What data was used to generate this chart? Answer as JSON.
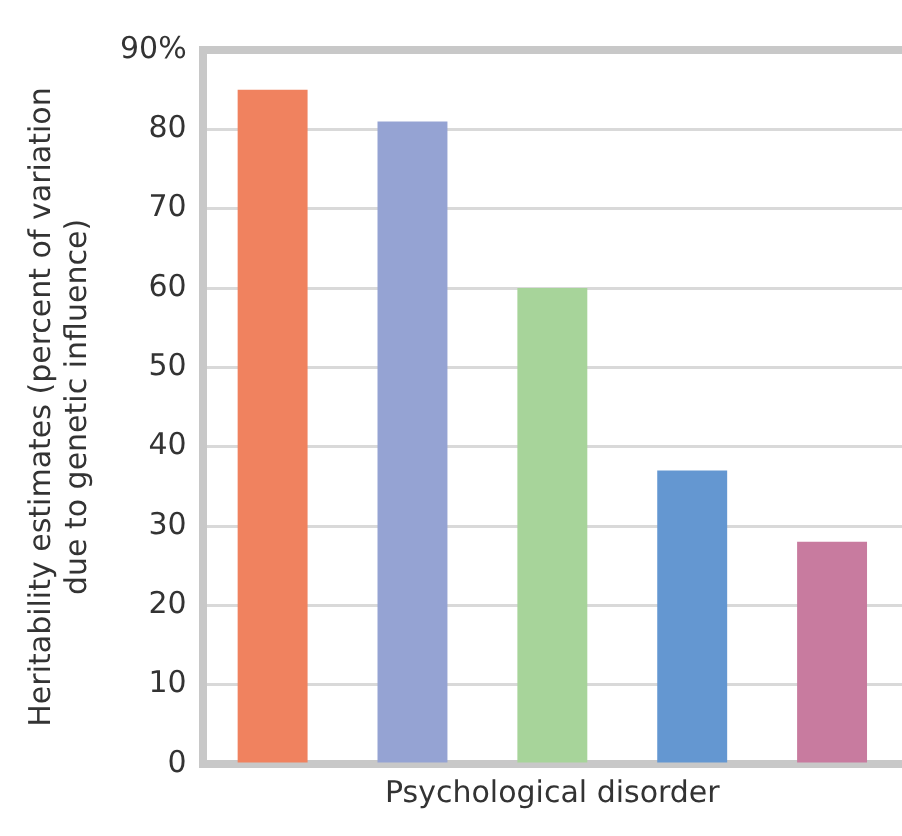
{
  "chart_data": {
    "type": "bar",
    "xlabel": "Psychological disorder",
    "ylabel": "Heritability estimates (percent of variation\ndue to genetic influence)",
    "categories": [
      null,
      null,
      null,
      null,
      null
    ],
    "values": [
      85,
      81,
      60,
      37,
      28
    ],
    "colors": [
      "#f0825f",
      "#95a3d3",
      "#a7d49a",
      "#6497d1",
      "#c87b9f"
    ],
    "ylim": [
      0,
      90
    ],
    "yticks": [
      0,
      10,
      20,
      30,
      40,
      50,
      60,
      70,
      80,
      {
        "value": 90,
        "label": "90%"
      }
    ],
    "grid": "y"
  }
}
